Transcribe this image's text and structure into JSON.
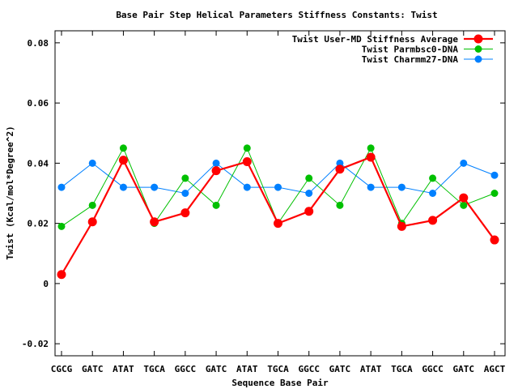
{
  "chart_data": {
    "type": "line",
    "title": "Base Pair Step Helical Parameters Stiffness Constants: Twist",
    "xlabel": "Sequence Base Pair",
    "ylabel": "Twist (Kcal/mol*Degree^2)",
    "ylim": [
      -0.024,
      0.084
    ],
    "yticks": [
      -0.02,
      0,
      0.02,
      0.04,
      0.06,
      0.08
    ],
    "ytick_labels": [
      "-0.02",
      "0",
      "0.02",
      "0.04",
      "0.06",
      "0.08"
    ],
    "categories": [
      "CGCG",
      "GATC",
      "ATAT",
      "TGCA",
      "GGCC",
      "GATC",
      "ATAT",
      "TGCA",
      "GGCC",
      "GATC",
      "ATAT",
      "TGCA",
      "GGCC",
      "GATC",
      "AGCT"
    ],
    "legend_position": "top-right",
    "grid": false,
    "series": [
      {
        "name": "Twist User-MD Stiffness Average",
        "color": "#ff0000",
        "values": [
          0.003,
          0.0205,
          0.041,
          0.0205,
          0.0235,
          0.0375,
          0.0405,
          0.02,
          0.024,
          0.038,
          0.042,
          0.019,
          0.021,
          0.0285,
          0.0145
        ]
      },
      {
        "name": "Twist Parmbsc0-DNA",
        "color": "#00c000",
        "values": [
          0.019,
          0.026,
          0.045,
          0.02,
          0.035,
          0.026,
          0.045,
          0.02,
          0.035,
          0.026,
          0.045,
          0.02,
          0.035,
          0.026,
          0.03
        ]
      },
      {
        "name": "Twist Charmm27-DNA",
        "color": "#0080ff",
        "values": [
          0.032,
          0.04,
          0.032,
          0.032,
          0.03,
          0.04,
          0.032,
          0.032,
          0.03,
          0.04,
          0.032,
          0.032,
          0.03,
          0.04,
          0.036
        ]
      }
    ]
  }
}
